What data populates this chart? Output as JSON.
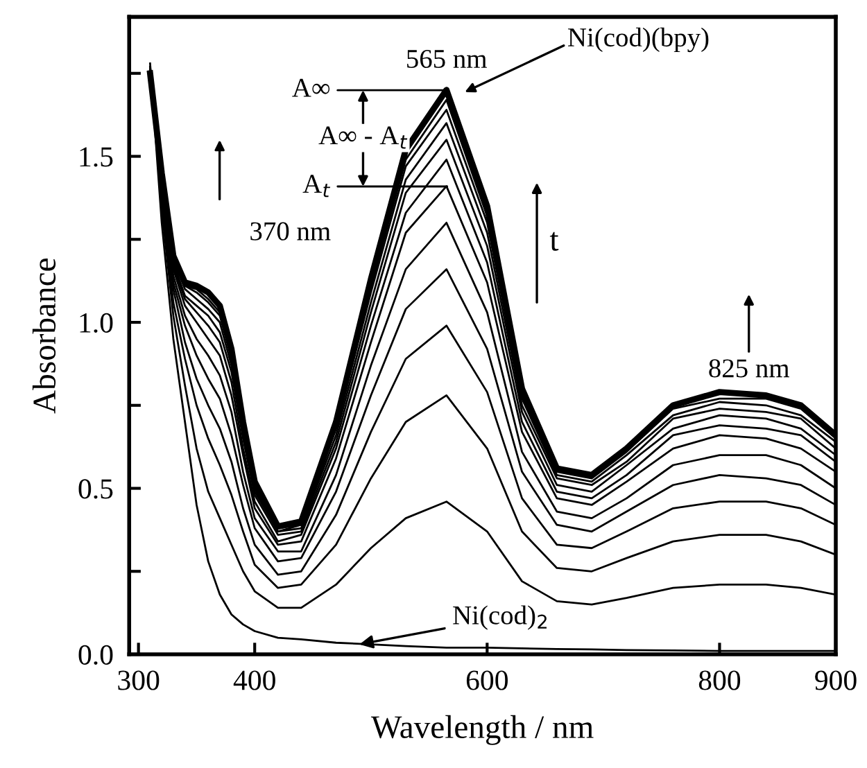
{
  "chart_data": {
    "type": "line",
    "xlabel": "Wavelength / nm",
    "ylabel": "Absorbance",
    "x": [
      310,
      320,
      330,
      340,
      350,
      360,
      370,
      380,
      390,
      400,
      420,
      440,
      470,
      500,
      530,
      565,
      600,
      630,
      660,
      690,
      720,
      760,
      800,
      840,
      870,
      900
    ],
    "xlim": [
      292,
      900
    ],
    "xticks": [
      300,
      400,
      600,
      800,
      900
    ],
    "ylim": [
      0,
      1.92
    ],
    "yticks": [
      {
        "value": 0,
        "label": "0.0"
      },
      {
        "value": 0.25,
        "label": null
      },
      {
        "value": 0.5,
        "label": "0.5"
      },
      {
        "value": 0.75,
        "label": null
      },
      {
        "value": 1.0,
        "label": "1.0"
      },
      {
        "value": 1.25,
        "label": null
      },
      {
        "value": 1.5,
        "label": "1.5"
      },
      {
        "value": 1.75,
        "label": null
      }
    ],
    "series": [
      {
        "color": "#000000",
        "values": [
          1.78,
          1.3,
          0.95,
          0.7,
          0.45,
          0.28,
          0.18,
          0.12,
          0.09,
          0.07,
          0.05,
          0.045,
          0.035,
          0.03,
          0.025,
          0.02,
          0.02,
          0.018,
          0.016,
          0.015,
          0.013,
          0.012,
          0.01,
          0.01,
          0.01,
          0.01
        ]
      },
      {
        "color": "#000000",
        "values": [
          1.77,
          1.34,
          1.02,
          0.81,
          0.62,
          0.49,
          0.41,
          0.33,
          0.25,
          0.19,
          0.14,
          0.14,
          0.21,
          0.32,
          0.41,
          0.46,
          0.37,
          0.22,
          0.16,
          0.15,
          0.17,
          0.2,
          0.21,
          0.21,
          0.2,
          0.18
        ]
      },
      {
        "color": "#000000",
        "values": [
          1.77,
          1.37,
          1.06,
          0.89,
          0.75,
          0.65,
          0.57,
          0.48,
          0.37,
          0.27,
          0.2,
          0.21,
          0.33,
          0.53,
          0.7,
          0.78,
          0.62,
          0.37,
          0.26,
          0.25,
          0.29,
          0.34,
          0.36,
          0.36,
          0.34,
          0.3
        ]
      },
      {
        "color": "#000000",
        "values": [
          1.76,
          1.39,
          1.1,
          0.94,
          0.83,
          0.75,
          0.68,
          0.58,
          0.44,
          0.33,
          0.24,
          0.25,
          0.42,
          0.67,
          0.89,
          0.99,
          0.79,
          0.47,
          0.33,
          0.32,
          0.37,
          0.44,
          0.46,
          0.46,
          0.44,
          0.39
        ]
      },
      {
        "color": "#000000",
        "values": [
          1.76,
          1.4,
          1.12,
          0.99,
          0.9,
          0.83,
          0.77,
          0.66,
          0.51,
          0.38,
          0.28,
          0.29,
          0.49,
          0.78,
          1.04,
          1.16,
          0.92,
          0.55,
          0.39,
          0.37,
          0.43,
          0.51,
          0.54,
          0.53,
          0.51,
          0.45
        ]
      },
      {
        "color": "#000000",
        "values": [
          1.76,
          1.41,
          1.14,
          1.02,
          0.95,
          0.9,
          0.84,
          0.73,
          0.55,
          0.41,
          0.31,
          0.31,
          0.54,
          0.87,
          1.16,
          1.3,
          1.03,
          0.61,
          0.43,
          0.41,
          0.47,
          0.57,
          0.6,
          0.6,
          0.57,
          0.5
        ]
      },
      {
        "color": "#000000",
        "values": [
          1.76,
          1.42,
          1.16,
          1.05,
          1.0,
          0.95,
          0.9,
          0.78,
          0.6,
          0.44,
          0.33,
          0.34,
          0.59,
          0.94,
          1.27,
          1.41,
          1.12,
          0.67,
          0.47,
          0.45,
          0.52,
          0.62,
          0.66,
          0.65,
          0.62,
          0.55
        ]
      },
      {
        "color": "#000000",
        "values": [
          1.75,
          1.43,
          1.17,
          1.07,
          1.03,
          0.99,
          0.94,
          0.82,
          0.62,
          0.46,
          0.34,
          0.36,
          0.62,
          0.99,
          1.33,
          1.49,
          1.18,
          0.7,
          0.49,
          0.47,
          0.54,
          0.66,
          0.69,
          0.68,
          0.66,
          0.58
        ]
      },
      {
        "color": "#000000",
        "values": [
          1.75,
          1.44,
          1.18,
          1.08,
          1.05,
          1.02,
          0.97,
          0.85,
          0.65,
          0.48,
          0.36,
          0.37,
          0.64,
          1.03,
          1.39,
          1.55,
          1.23,
          0.73,
          0.51,
          0.49,
          0.57,
          0.68,
          0.72,
          0.71,
          0.68,
          0.6
        ]
      },
      {
        "color": "#000000",
        "values": [
          1.75,
          1.44,
          1.19,
          1.1,
          1.07,
          1.04,
          1.0,
          0.87,
          0.66,
          0.49,
          0.37,
          0.38,
          0.66,
          1.06,
          1.43,
          1.6,
          1.27,
          0.75,
          0.53,
          0.51,
          0.58,
          0.71,
          0.74,
          0.73,
          0.71,
          0.62
        ]
      },
      {
        "color": "#000000",
        "values": [
          1.75,
          1.45,
          1.19,
          1.11,
          1.09,
          1.06,
          1.02,
          0.89,
          0.68,
          0.5,
          0.37,
          0.39,
          0.68,
          1.09,
          1.47,
          1.64,
          1.3,
          0.77,
          0.54,
          0.52,
          0.6,
          0.72,
          0.76,
          0.75,
          0.72,
          0.64
        ]
      },
      {
        "color": "#000000",
        "values": [
          1.75,
          1.45,
          1.2,
          1.11,
          1.1,
          1.07,
          1.03,
          0.9,
          0.69,
          0.51,
          0.38,
          0.39,
          0.69,
          1.11,
          1.49,
          1.67,
          1.32,
          0.78,
          0.55,
          0.53,
          0.61,
          0.74,
          0.77,
          0.77,
          0.74,
          0.65
        ]
      },
      {
        "color": "#000000",
        "values": [
          1.75,
          1.45,
          1.2,
          1.12,
          1.11,
          1.09,
          1.05,
          0.92,
          0.7,
          0.52,
          0.385,
          0.4,
          0.7,
          1.13,
          1.52,
          1.7,
          1.35,
          0.8,
          0.56,
          0.54,
          0.62,
          0.75,
          0.79,
          0.78,
          0.75,
          0.66
        ]
      }
    ],
    "annotations": [
      {
        "text": "565 nm",
        "x": 565,
        "y": 1.7
      },
      "Ni(cod)(bpy)",
      "A∞",
      "A∞ - A$_{t}$",
      "A$_{t}$",
      "370 nm",
      "t",
      "825 nm",
      {
        "text": "Ni(cod)$_{2}$",
        "x": 490,
        "y": 0.03
      }
    ]
  }
}
